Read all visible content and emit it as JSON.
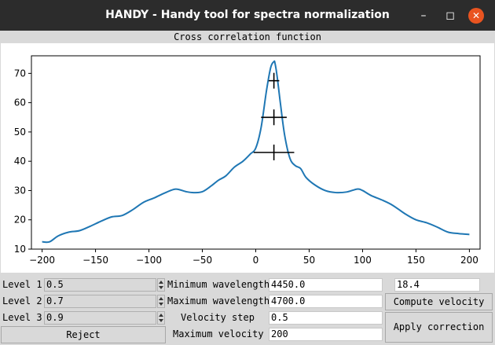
{
  "window": {
    "title": "HANDY - Handy tool for spectra normalization",
    "minimize_icon": "minimize-icon",
    "maximize_icon": "maximize-icon",
    "close_icon": "close-icon",
    "close_color": "#e95420"
  },
  "plot": {
    "header": "Cross correlation function"
  },
  "chart_data": {
    "type": "line",
    "title": "",
    "xlabel": "",
    "ylabel": "",
    "xlim": [
      -210,
      210
    ],
    "ylim": [
      10,
      76
    ],
    "xticks": [
      -200,
      -150,
      -100,
      -50,
      0,
      50,
      100,
      150,
      200
    ],
    "yticks": [
      10,
      20,
      30,
      40,
      50,
      60,
      70
    ],
    "grid": false,
    "line_color": "#1f77b4",
    "series": [
      {
        "x": [
          -200,
          -193,
          -185,
          -175,
          -165,
          -155,
          -145,
          -135,
          -125,
          -115,
          -105,
          -95,
          -85,
          -75,
          -65,
          -58,
          -50,
          -42,
          -35,
          -28,
          -20,
          -12,
          -5,
          0,
          5,
          10,
          14,
          17,
          18,
          20,
          23,
          27,
          32,
          37,
          42,
          47,
          55,
          65,
          75,
          85,
          95,
          100,
          108,
          118,
          128,
          140,
          150,
          160,
          170,
          180,
          190,
          200
        ],
        "y": [
          12.5,
          12.5,
          14.5,
          15.8,
          16.3,
          17.8,
          19.5,
          21.0,
          21.5,
          23.5,
          26.0,
          27.5,
          29.2,
          30.5,
          29.6,
          29.3,
          29.6,
          31.5,
          33.5,
          35.0,
          38.0,
          40.0,
          42.5,
          44.5,
          51.5,
          64.0,
          72.0,
          74.0,
          73.5,
          69.0,
          60.0,
          49.0,
          41.0,
          38.5,
          37.5,
          34.5,
          32.0,
          30.0,
          29.3,
          29.5,
          30.5,
          30.0,
          28.3,
          26.8,
          25.0,
          22.0,
          20.0,
          19.0,
          17.5,
          15.8,
          15.3,
          15.0
        ]
      }
    ],
    "markers": [
      {
        "x": 17,
        "y": 67.5,
        "half_width": 5
      },
      {
        "x": 17,
        "y": 55,
        "half_width": 12
      },
      {
        "x": 17,
        "y": 43,
        "half_width": 19
      }
    ]
  },
  "controls": {
    "level1_label": "Level 1",
    "level1_value": "0.5",
    "level2_label": "Level 2",
    "level2_value": "0.7",
    "level3_label": "Level 3",
    "level3_value": "0.9",
    "reject_label": "Reject",
    "min_wavelength_label": "Minimum wavelength",
    "min_wavelength_value": "4450.0",
    "max_wavelength_label": "Maximum wavelength",
    "max_wavelength_value": "4700.0",
    "velocity_step_label": "Velocity step",
    "velocity_step_value": "0.5",
    "max_velocity_label": "Maximum velocity",
    "max_velocity_value": "200",
    "velocity_result_value": "18.4",
    "compute_velocity_label": "Compute velocity",
    "apply_correction_label": "Apply correction",
    "spin_up_icon": "spin-up-icon",
    "spin_down_icon": "spin-down-icon"
  }
}
